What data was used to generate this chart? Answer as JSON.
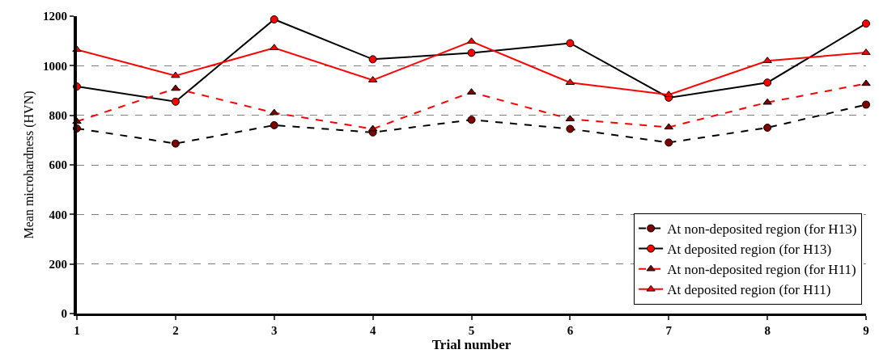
{
  "chart_data": {
    "type": "line",
    "xlabel": "Trial number",
    "ylabel": "Mean microhardness (HVN)",
    "x": [
      1,
      2,
      3,
      4,
      5,
      6,
      7,
      8,
      9
    ],
    "xlim": [
      1,
      9
    ],
    "xticks": [
      1,
      2,
      3,
      4,
      5,
      6,
      7,
      8,
      9
    ],
    "ylim": [
      0,
      1200
    ],
    "yticks": [
      0,
      200,
      400,
      600,
      800,
      1000,
      1200
    ],
    "grid": "y",
    "legend": "bottom right",
    "series": [
      {
        "name": "At non-deposited region (for H13)",
        "color": "#000000",
        "colors": [
          "#800000",
          "#800000",
          "#800000",
          "#800000",
          "#800000",
          "#800000",
          "#800000",
          "#800000",
          "#800000"
        ],
        "marker": "circle",
        "line_style": "dashed",
        "values": [
          747,
          686,
          760,
          731,
          782,
          745,
          690,
          750,
          843
        ]
      },
      {
        "name": "At deposited region (for H13)",
        "color": "#000000",
        "colors": [
          "#ff0000",
          "#ff0000",
          "#ff0000",
          "#ff0000",
          "#ff0000",
          "#ff0000",
          "#ff0000",
          "#ff0000",
          "#ff0000"
        ],
        "marker": "circle",
        "line_style": "solid",
        "values": [
          916,
          855,
          1187,
          1026,
          1052,
          1091,
          871,
          932,
          1170
        ]
      },
      {
        "name": "At non-deposited region (for H11)",
        "color": "#ff0000",
        "colors": [
          "#800000",
          "#800000",
          "#800000",
          "#800000",
          "#800000",
          "#800000",
          "#800000",
          "#800000",
          "#800000"
        ],
        "marker": "triangle",
        "line_style": "dashed",
        "values": [
          775,
          908,
          810,
          745,
          893,
          785,
          752,
          852,
          928
        ]
      },
      {
        "name": "At deposited region (for H11)",
        "color": "#ff0000",
        "colors": [
          "#ff0000",
          "#ff0000",
          "#ff0000",
          "#ff0000",
          "#ff0000",
          "#ff0000",
          "#ff0000",
          "#ff0000",
          "#ff0000"
        ],
        "marker": "triangle",
        "line_style": "solid",
        "values": [
          1065,
          960,
          1072,
          942,
          1098,
          932,
          883,
          1020,
          1053
        ]
      }
    ]
  }
}
